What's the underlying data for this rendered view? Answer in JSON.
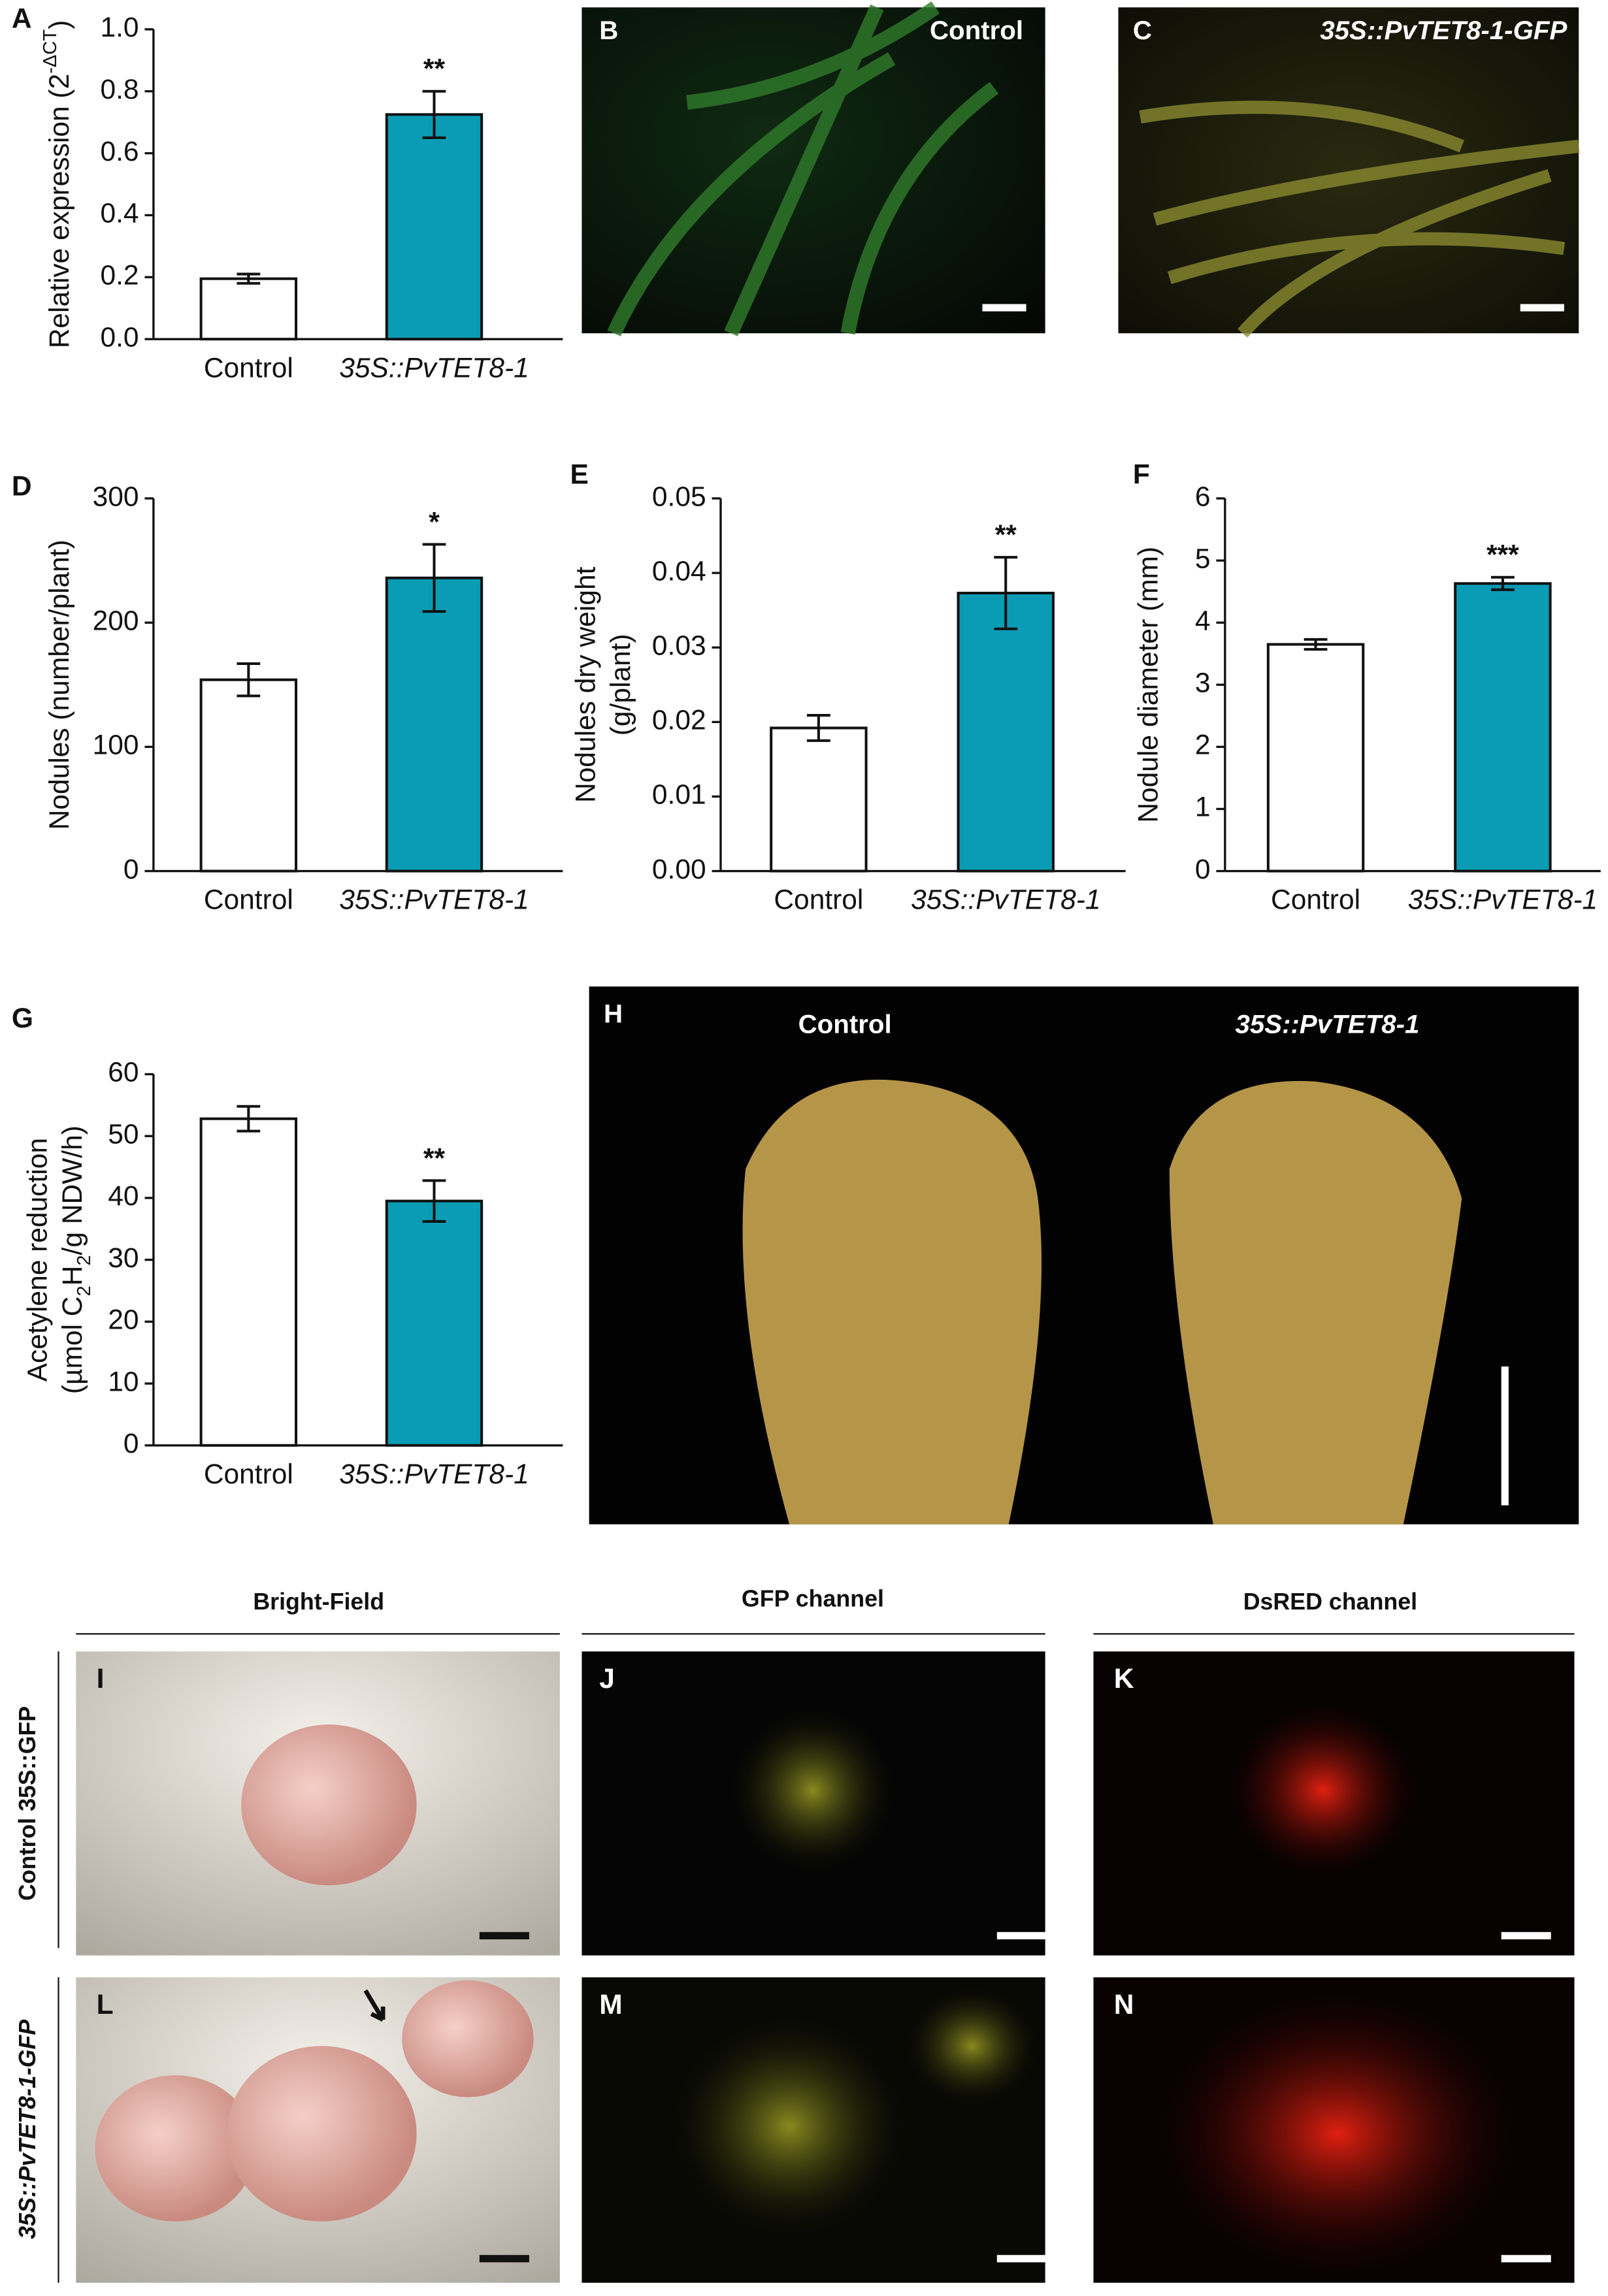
{
  "chart_data": [
    {
      "type": "bar",
      "panel": "A",
      "ylabel": [
        [
          {
            "text": "Relative expression (2"
          },
          {
            "text": "-ΔCT",
            "shift": "super"
          },
          {
            "text": ")"
          }
        ]
      ],
      "categories": [
        "Control",
        "35S::PvTET8-1"
      ],
      "italic": [
        false,
        true
      ],
      "values": [
        0.195,
        0.725
      ],
      "errors": [
        0.015,
        0.075
      ],
      "significance": [
        null,
        "**"
      ],
      "colors": [
        "#ffffff",
        "#0a9cb5"
      ],
      "ylim": [
        0,
        1
      ],
      "yticks": [
        {
          "value": 0,
          "label": "0.0"
        },
        0.2,
        0.4,
        0.6,
        0.8,
        {
          "value": 1,
          "label": "1.0"
        }
      ]
    },
    {
      "type": "bar",
      "panel": "D",
      "ylabel": [
        [
          {
            "text": "Nodules (number/plant)"
          }
        ]
      ],
      "categories": [
        "Control",
        "35S::PvTET8-1"
      ],
      "italic": [
        false,
        true
      ],
      "values": [
        154,
        236
      ],
      "errors": [
        13,
        27
      ],
      "significance": [
        null,
        "*"
      ],
      "colors": [
        "#ffffff",
        "#0a9cb5"
      ],
      "ylim": [
        0,
        300
      ],
      "yticks": [
        0,
        100,
        200,
        300
      ]
    },
    {
      "type": "bar",
      "panel": "E",
      "ylabel": [
        [
          {
            "text": "Nodules dry weight"
          }
        ],
        [
          {
            "text": "(g/plant)"
          }
        ]
      ],
      "categories": [
        "Control",
        "35S::PvTET8-1"
      ],
      "italic": [
        false,
        true
      ],
      "values": [
        0.0192,
        0.0373
      ],
      "errors": [
        0.0017,
        0.0048
      ],
      "significance": [
        null,
        "**"
      ],
      "colors": [
        "#ffffff",
        "#0a9cb5"
      ],
      "ylim": [
        0,
        0.05
      ],
      "yticks": [
        {
          "value": 0,
          "label": "0.00"
        },
        0.01,
        0.02,
        0.03,
        0.04,
        0.05
      ]
    },
    {
      "type": "bar",
      "panel": "F",
      "ylabel": [
        [
          {
            "text": "Nodule diameter (mm)"
          }
        ]
      ],
      "categories": [
        "Control",
        "35S::PvTET8-1"
      ],
      "italic": [
        false,
        true
      ],
      "values": [
        3.65,
        4.63
      ],
      "errors": [
        0.08,
        0.1
      ],
      "significance": [
        null,
        "***"
      ],
      "colors": [
        "#ffffff",
        "#0a9cb5"
      ],
      "ylim": [
        0,
        6
      ],
      "yticks": [
        0,
        1,
        2,
        3,
        4,
        5,
        6
      ]
    },
    {
      "type": "bar",
      "panel": "G",
      "ylabel": [
        [
          {
            "text": "Acetylene reduction"
          }
        ],
        [
          {
            "text": "(µmol C"
          },
          {
            "text": "2",
            "shift": "sub"
          },
          {
            "text": "H"
          },
          {
            "text": "2",
            "shift": "sub"
          },
          {
            "text": "/g NDW/h)"
          }
        ]
      ],
      "categories": [
        "Control",
        "35S::PvTET8-1"
      ],
      "italic": [
        false,
        true
      ],
      "values": [
        52.8,
        39.5
      ],
      "errors": [
        2,
        3.3
      ],
      "significance": [
        null,
        "**"
      ],
      "colors": [
        "#ffffff",
        "#0a9cb5"
      ],
      "ylim": [
        0,
        60
      ],
      "yticks": [
        0,
        10,
        20,
        30,
        40,
        50,
        60
      ]
    }
  ],
  "photos": {
    "B": {
      "label": "B",
      "caption": "Control"
    },
    "C": {
      "label": "C",
      "caption": "35S::PvTET8-1-GFP"
    },
    "H": {
      "label": "H",
      "captions": [
        "Control",
        "35S::PvTET8-1"
      ]
    },
    "columns": [
      "Bright-Field",
      "GFP channel",
      "DsRED channel"
    ],
    "rows": [
      "Control 35S::GFP",
      "35S::PvTET8-1-GFP"
    ],
    "panels": [
      "I",
      "J",
      "K",
      "L",
      "M",
      "N"
    ]
  }
}
